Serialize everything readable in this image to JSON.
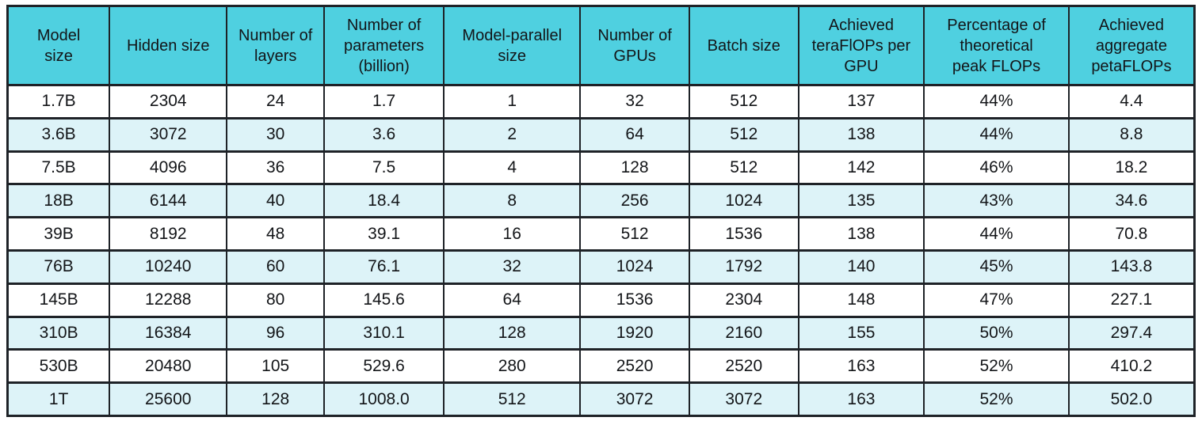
{
  "colors": {
    "header_bg": "#4fd0e0",
    "row_bg": "#ffffff",
    "row_alt_bg": "#ddf3f8",
    "border": "#1e2227",
    "text": "#131518"
  },
  "chart_data": {
    "type": "table",
    "title": "",
    "columns": [
      "Model\nsize",
      "Hidden size",
      "Number of\nlayers",
      "Number of\nparameters\n(billion)",
      "Model-parallel\nsize",
      "Number of\nGPUs",
      "Batch size",
      "Achieved\nteraFlOPs per\nGPU",
      "Percentage of\ntheoretical\npeak FLOPs",
      "Achieved\naggregate\npetaFLOPs"
    ],
    "column_keys": [
      "model-size",
      "hidden-size",
      "num-layers",
      "num-parameters-billion",
      "model-parallel-size",
      "num-gpus",
      "batch-size",
      "achieved-teraflops-per-gpu",
      "pct-theoretical-peak-flops",
      "achieved-aggregate-petaflops"
    ],
    "col_widths_pct": [
      8.6,
      9.9,
      8.2,
      10.1,
      11.5,
      9.2,
      9.2,
      10.6,
      12.2,
      10.6
    ],
    "rows": [
      [
        "1.7B",
        "2304",
        "24",
        "1.7",
        "1",
        "32",
        "512",
        "137",
        "44%",
        "4.4"
      ],
      [
        "3.6B",
        "3072",
        "30",
        "3.6",
        "2",
        "64",
        "512",
        "138",
        "44%",
        "8.8"
      ],
      [
        "7.5B",
        "4096",
        "36",
        "7.5",
        "4",
        "128",
        "512",
        "142",
        "46%",
        "18.2"
      ],
      [
        "18B",
        "6144",
        "40",
        "18.4",
        "8",
        "256",
        "1024",
        "135",
        "43%",
        "34.6"
      ],
      [
        "39B",
        "8192",
        "48",
        "39.1",
        "16",
        "512",
        "1536",
        "138",
        "44%",
        "70.8"
      ],
      [
        "76B",
        "10240",
        "60",
        "76.1",
        "32",
        "1024",
        "1792",
        "140",
        "45%",
        "143.8"
      ],
      [
        "145B",
        "12288",
        "80",
        "145.6",
        "64",
        "1536",
        "2304",
        "148",
        "47%",
        "227.1"
      ],
      [
        "310B",
        "16384",
        "96",
        "310.1",
        "128",
        "1920",
        "2160",
        "155",
        "50%",
        "297.4"
      ],
      [
        "530B",
        "20480",
        "105",
        "529.6",
        "280",
        "2520",
        "2520",
        "163",
        "52%",
        "410.2"
      ],
      [
        "1T",
        "25600",
        "128",
        "1008.0",
        "512",
        "3072",
        "3072",
        "163",
        "52%",
        "502.0"
      ]
    ],
    "layout": {
      "grid": true,
      "alternating_row_shading": "even rows (2nd, 4th, ...) shaded pale cyan",
      "header_position": "top"
    }
  }
}
